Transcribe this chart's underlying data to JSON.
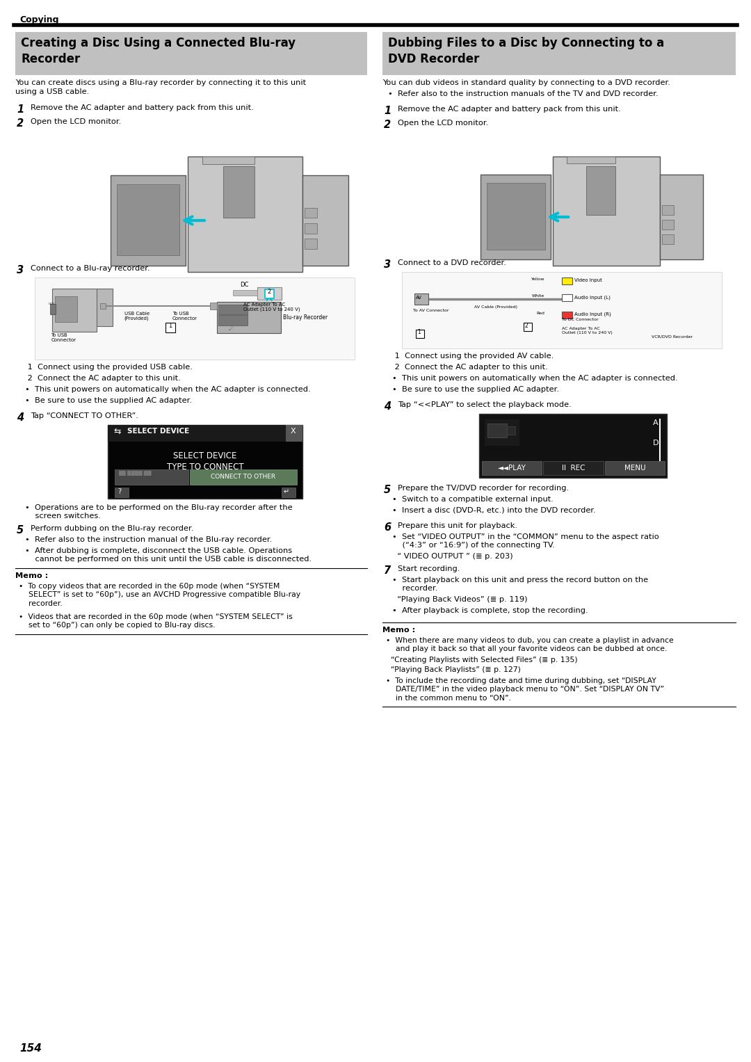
{
  "page_bg": "#ffffff",
  "header_text": "Copying",
  "header_line_color": "#000000",
  "page_number": "154",
  "left_section": {
    "title_line1": "Creating a Disc Using a Connected Blu-ray",
    "title_line2": "Recorder",
    "title_bg": "#c0c0c0",
    "intro": "You can create discs using a Blu-ray recorder by connecting it to this unit\nusing a USB cable.",
    "step1": "Remove the AC adapter and battery pack from this unit.",
    "step2": "Open the LCD monitor.",
    "step3": "Connect to a Blu-ray recorder.",
    "step4_label": "Tap “CONNECT TO OTHER”.",
    "sub3_1": " 1  Connect using the provided USB cable.",
    "sub3_2": " 2  Connect the AC adapter to this unit.",
    "sub3_b1": "•  This unit powers on automatically when the AC adapter is connected.",
    "sub3_b2": "•  Be sure to use the supplied AC adapter.",
    "screen_title": "SELECT DEVICE",
    "screen_line1": "SELECT DEVICE",
    "screen_line2": "TYPE TO CONNECT",
    "screen_btn": "CONNECT TO OTHER",
    "ops_note": "•  Operations are to be performed on the Blu-ray recorder after the\n    screen switches.",
    "step5_label": "Perform dubbing on the Blu-ray recorder.",
    "sub5_1": "•  Refer also to the instruction manual of the Blu-ray recorder.",
    "sub5_2": "•  After dubbing is complete, disconnect the USB cable. Operations\n    cannot be performed on this unit until the USB cable is disconnected.",
    "memo_title": "Memo :",
    "memo1": "•  To copy videos that are recorded in the 60p mode (when “SYSTEM\n    SELECT” is set to “60p”), use an AVCHD Progressive compatible Blu-ray\n    recorder.",
    "memo2": "•  Videos that are recorded in the 60p mode (when “SYSTEM SELECT” is\n    set to “60p”) can only be copied to Blu-ray discs."
  },
  "right_section": {
    "title_line1": "Dubbing Files to a Disc by Connecting to a",
    "title_line2": "DVD Recorder",
    "title_bg": "#c0c0c0",
    "intro1": "You can dub videos in standard quality by connecting to a DVD recorder.",
    "intro2": "•  Refer also to the instruction manuals of the TV and DVD recorder.",
    "step1": "Remove the AC adapter and battery pack from this unit.",
    "step2": "Open the LCD monitor.",
    "step3": "Connect to a DVD recorder.",
    "step4_label": "Tap “<<PLAY” to select the playback mode.",
    "sub3_1": " 1  Connect using the provided AV cable.",
    "sub3_2": " 2  Connect the AC adapter to this unit.",
    "sub3_b1": "•  This unit powers on automatically when the AC adapter is connected.",
    "sub3_b2": "•  Be sure to use the supplied AC adapter.",
    "step5_label": "Prepare the TV/DVD recorder for recording.",
    "sub5_1": "•  Switch to a compatible external input.",
    "sub5_2": "•  Insert a disc (DVD-R, etc.) into the DVD recorder.",
    "step6_label": "Prepare this unit for playback.",
    "sub6_1": "•  Set “VIDEO OUTPUT” in the “COMMON” menu to the aspect ratio\n    (“4:3” or “16:9”) of the connecting TV.",
    "sub6_2": "  “ VIDEO OUTPUT ” (≣ p. 203)",
    "step7_label": "Start recording.",
    "sub7_1": "•  Start playback on this unit and press the record button on the\n    recorder.",
    "sub7_2": "  “Playing Back Videos” (≣ p. 119)",
    "sub7_3": "•  After playback is complete, stop the recording.",
    "memo_title": "Memo :",
    "memo1": "•  When there are many videos to dub, you can create a playlist in advance\n    and play it back so that all your favorite videos can be dubbed at once.",
    "memo2": "  “Creating Playlists with Selected Files” (≣ p. 135)",
    "memo3": "  “Playing Back Playlists” (≣ p. 127)",
    "memo4": "•  To include the recording date and time during dubbing, set “DISPLAY\n    DATE/TIME” in the video playback menu to “ON”. Set “DISPLAY ON TV”\n    in the common menu to “ON”."
  },
  "colors": {
    "title_bg": "#b8b8b8",
    "body_text": "#000000",
    "screen_bg": "#000000",
    "screen_btn_bg": "#5a8a5a",
    "screen_dim_btn": "#444444",
    "camera_body": "#c0c0c0",
    "camera_outline": "#555555",
    "cyan_arrow": "#00bcd4"
  }
}
